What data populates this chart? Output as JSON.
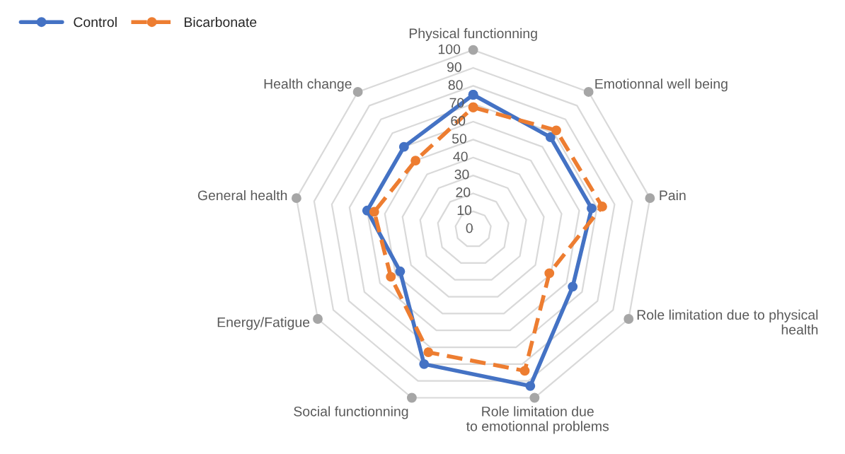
{
  "chart_data": {
    "type": "radar",
    "categories": [
      "Physical functionning",
      "Emotionnal well being",
      "Pain",
      "Role limitation due to physical health",
      "Role limitation due to emotionnal problems",
      "Social functionning",
      "Energy/Fatigue",
      "General health",
      "Health change"
    ],
    "series": [
      {
        "name": "Control",
        "color": "#4472c4",
        "line_style": "solid",
        "values": [
          75,
          67,
          67,
          64,
          93,
          80,
          47,
          60,
          60
        ]
      },
      {
        "name": "Bicarbonate",
        "color": "#ed7d31",
        "line_style": "dashed",
        "values": [
          68,
          72,
          73,
          49,
          84,
          73,
          53,
          56,
          50
        ]
      }
    ],
    "ylim": [
      0,
      100
    ],
    "yticks": [
      0,
      10,
      20,
      30,
      40,
      50,
      60,
      70,
      80,
      90,
      100
    ],
    "grid": true,
    "marker": "circle",
    "legend": "top left"
  }
}
